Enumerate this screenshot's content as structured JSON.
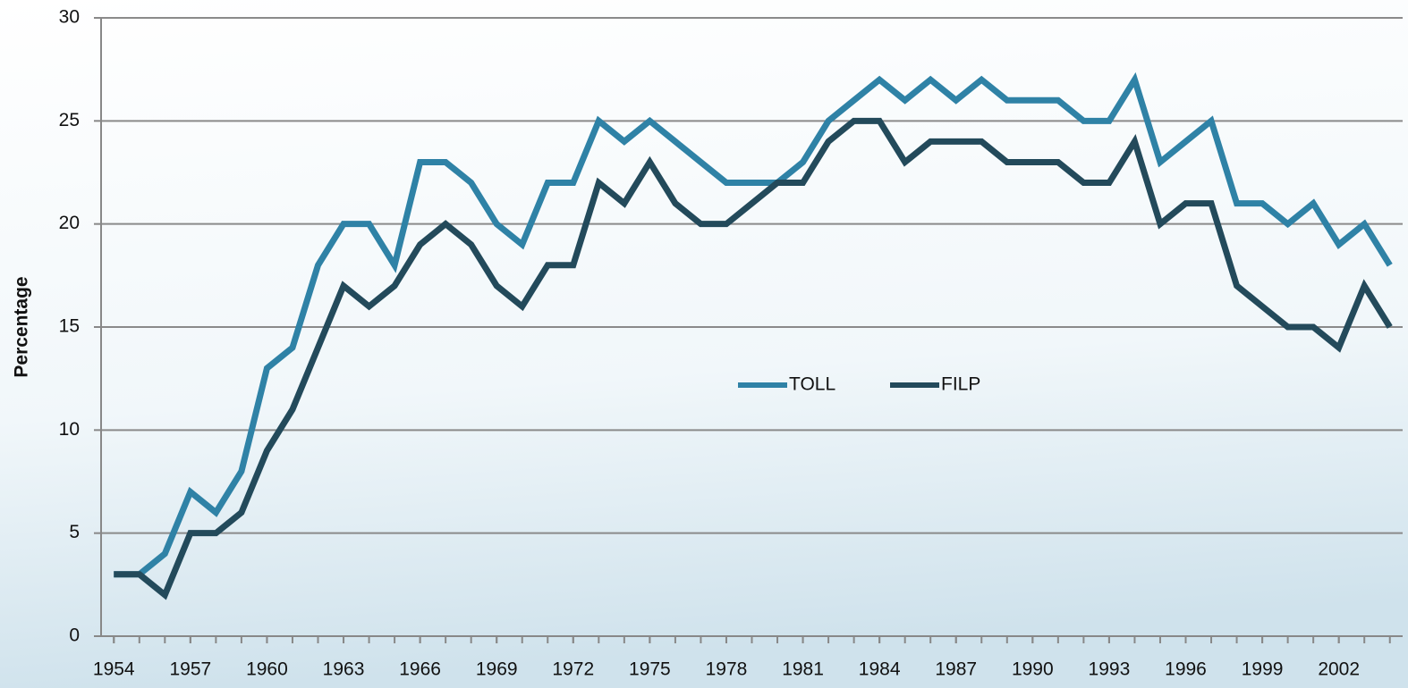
{
  "chart_data": {
    "type": "line",
    "y_label": "Percentage",
    "x": [
      1954,
      1955,
      1956,
      1957,
      1958,
      1959,
      1960,
      1961,
      1962,
      1963,
      1964,
      1965,
      1966,
      1967,
      1968,
      1969,
      1970,
      1971,
      1972,
      1973,
      1974,
      1975,
      1976,
      1977,
      1978,
      1979,
      1980,
      1981,
      1982,
      1983,
      1984,
      1985,
      1986,
      1987,
      1988,
      1989,
      1990,
      1991,
      1992,
      1993,
      1994,
      1995,
      1996,
      1997,
      1998,
      1999,
      2000,
      2001,
      2002,
      2003,
      2004
    ],
    "series": [
      {
        "name": "TOLL",
        "color": "#2f82a6",
        "values": [
          3,
          3,
          4,
          7,
          6,
          8,
          13,
          14,
          18,
          20,
          20,
          18,
          23,
          23,
          22,
          20,
          19,
          22,
          22,
          25,
          24,
          25,
          24,
          23,
          22,
          22,
          22,
          23,
          25,
          26,
          27,
          26,
          27,
          26,
          27,
          26,
          26,
          26,
          25,
          25,
          27,
          23,
          24,
          25,
          21,
          21,
          20,
          21,
          19,
          20,
          18
        ]
      },
      {
        "name": "FILP",
        "color": "#234a5b",
        "values": [
          3,
          3,
          2,
          5,
          5,
          6,
          9,
          11,
          14,
          17,
          16,
          17,
          19,
          20,
          19,
          17,
          16,
          18,
          18,
          22,
          21,
          23,
          21,
          20,
          20,
          21,
          22,
          22,
          24,
          25,
          25,
          23,
          24,
          24,
          24,
          23,
          23,
          23,
          22,
          22,
          24,
          20,
          21,
          21,
          17,
          16,
          15,
          15,
          14,
          17,
          15
        ]
      }
    ],
    "xlim": [
      1953.5,
      2004.5
    ],
    "xticks": [
      1954,
      1957,
      1960,
      1963,
      1966,
      1969,
      1972,
      1975,
      1978,
      1981,
      1984,
      1987,
      1990,
      1993,
      1996,
      1999,
      2002
    ],
    "ylim": [
      0,
      30
    ],
    "yticks": [
      0,
      5,
      10,
      15,
      20,
      25,
      30
    ],
    "grid": true
  }
}
